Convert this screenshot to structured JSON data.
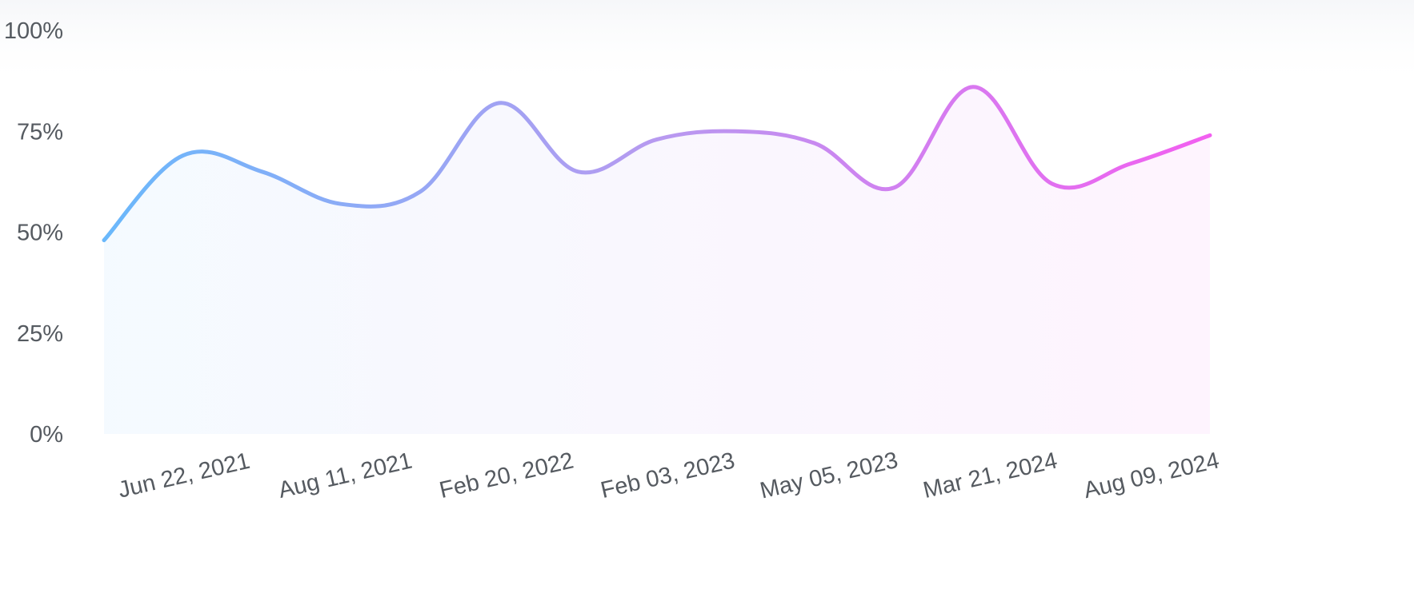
{
  "chart_data": {
    "type": "area",
    "x_tick_labels": [
      "Jun 22, 2021",
      "Aug 11, 2021",
      "Feb 20, 2022",
      "Feb 03, 2023",
      "May 05, 2023",
      "Mar 21, 2024",
      "Aug 09, 2024"
    ],
    "y_tick_labels": [
      "0%",
      "25%",
      "50%",
      "75%",
      "100%"
    ],
    "ylim": [
      0,
      100
    ],
    "series": [
      {
        "values": [
          48,
          69,
          65,
          57,
          60,
          82,
          65,
          73,
          75,
          72,
          61,
          86,
          62,
          67,
          74
        ]
      }
    ],
    "grid": false,
    "legend": "none",
    "colors": {
      "line_start": "#6ab8fb",
      "line_mid": "#b79af0",
      "line_end": "#f25ff0",
      "axis_text": "#555a60"
    }
  }
}
